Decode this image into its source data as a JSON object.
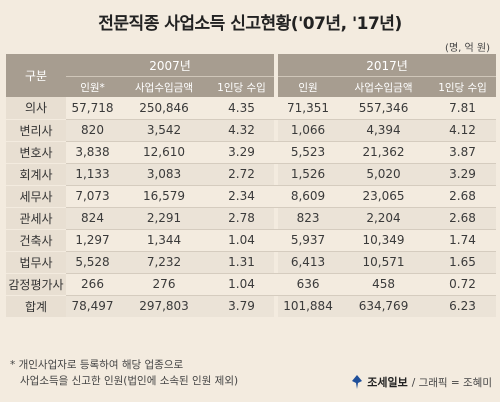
{
  "title": "전문직종 사업소득 신고현황('07년, '17년)",
  "unit": "(명, 억 원)",
  "table": {
    "corner": "구분",
    "groups": [
      "2007년",
      "2017년"
    ],
    "subheaders": [
      "인원*",
      "사업수입금액",
      "1인당 수입",
      "인원",
      "사업수입금액",
      "1인당 수입"
    ],
    "rows": [
      {
        "label": "의사",
        "values": [
          "57,718",
          "250,846",
          "4.35",
          "71,351",
          "557,346",
          "7.81"
        ]
      },
      {
        "label": "변리사",
        "values": [
          "820",
          "3,542",
          "4.32",
          "1,066",
          "4,394",
          "4.12"
        ]
      },
      {
        "label": "변호사",
        "values": [
          "3,838",
          "12,610",
          "3.29",
          "5,523",
          "21,362",
          "3.87"
        ]
      },
      {
        "label": "회계사",
        "values": [
          "1,133",
          "3,083",
          "2.72",
          "1,526",
          "5,020",
          "3.29"
        ]
      },
      {
        "label": "세무사",
        "values": [
          "7,073",
          "16,579",
          "2.34",
          "8,609",
          "23,065",
          "2.68"
        ]
      },
      {
        "label": "관세사",
        "values": [
          "824",
          "2,291",
          "2.78",
          "823",
          "2,204",
          "2.68"
        ]
      },
      {
        "label": "건축사",
        "values": [
          "1,297",
          "1,344",
          "1.04",
          "5,937",
          "10,349",
          "1.74"
        ]
      },
      {
        "label": "법무사",
        "values": [
          "5,528",
          "7,232",
          "1.31",
          "6,413",
          "10,571",
          "1.65"
        ]
      },
      {
        "label": "감정평가사",
        "values": [
          "266",
          "276",
          "1.04",
          "636",
          "458",
          "0.72"
        ]
      },
      {
        "label": "합계",
        "values": [
          "78,497",
          "297,803",
          "3.79",
          "101,884",
          "634,769",
          "6.23"
        ]
      }
    ]
  },
  "footnote": {
    "line1": "* 개인사업자로 등록하여 해당 업종으로",
    "line2": "사업소득을 신고한 인원(법인에 소속된 인원 제외)"
  },
  "credit": {
    "brand": "조세일보",
    "text": "/ 그래픽 = 조혜미",
    "logo_icon": "pen-nib-logo-icon",
    "logo_color": "#1f4f9a"
  }
}
